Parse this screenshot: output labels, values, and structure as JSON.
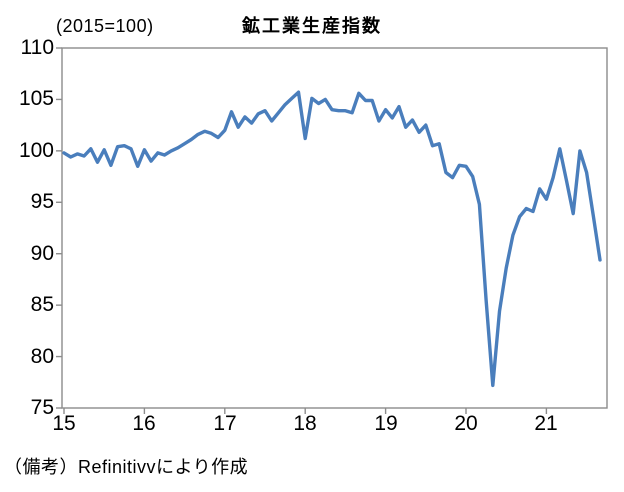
{
  "page": {
    "background": "#ffffff"
  },
  "chart_data": {
    "type": "line",
    "title": "鉱工業生産指数",
    "unit_label": "(2015=100)",
    "source_note": "（備考）Refinitivvにより作成",
    "frequency": "monthly",
    "x_start": "2015-01",
    "x_end": "2021-09",
    "xlabel": "",
    "ylabel": "",
    "ylim": [
      75,
      110
    ],
    "y_ticks": [
      110,
      105,
      100,
      95,
      90,
      85,
      80,
      75
    ],
    "y_tick_labels": [
      "110",
      "105",
      "100",
      "95",
      "90",
      "85",
      "80",
      "75"
    ],
    "x_tick_labels": [
      "15",
      "16",
      "17",
      "18",
      "19",
      "20",
      "21"
    ],
    "grid": false,
    "legend_position": "none",
    "line_color": "#4a7ebc",
    "axis_color": "#8c8c8c",
    "categories": [
      "2015-01",
      "2015-02",
      "2015-03",
      "2015-04",
      "2015-05",
      "2015-06",
      "2015-07",
      "2015-08",
      "2015-09",
      "2015-10",
      "2015-11",
      "2015-12",
      "2016-01",
      "2016-02",
      "2016-03",
      "2016-04",
      "2016-05",
      "2016-06",
      "2016-07",
      "2016-08",
      "2016-09",
      "2016-10",
      "2016-11",
      "2016-12",
      "2017-01",
      "2017-02",
      "2017-03",
      "2017-04",
      "2017-05",
      "2017-06",
      "2017-07",
      "2017-08",
      "2017-09",
      "2017-10",
      "2017-11",
      "2017-12",
      "2018-01",
      "2018-02",
      "2018-03",
      "2018-04",
      "2018-05",
      "2018-06",
      "2018-07",
      "2018-08",
      "2018-09",
      "2018-10",
      "2018-11",
      "2018-12",
      "2019-01",
      "2019-02",
      "2019-03",
      "2019-04",
      "2019-05",
      "2019-06",
      "2019-07",
      "2019-08",
      "2019-09",
      "2019-10",
      "2019-11",
      "2019-12",
      "2020-01",
      "2020-02",
      "2020-03",
      "2020-04",
      "2020-05",
      "2020-06",
      "2020-07",
      "2020-08",
      "2020-09",
      "2020-10",
      "2020-11",
      "2020-12",
      "2021-01",
      "2021-02",
      "2021-03",
      "2021-04",
      "2021-05",
      "2021-06",
      "2021-07",
      "2021-08",
      "2021-09"
    ],
    "values": [
      99.8,
      99.4,
      99.7,
      99.5,
      100.2,
      98.9,
      100.1,
      98.6,
      100.4,
      100.5,
      100.2,
      98.5,
      100.1,
      99.0,
      99.8,
      99.6,
      100.0,
      100.3,
      100.7,
      101.1,
      101.6,
      101.9,
      101.7,
      101.3,
      102.0,
      103.8,
      102.3,
      103.3,
      102.7,
      103.6,
      103.9,
      102.9,
      103.7,
      104.5,
      105.1,
      105.7,
      101.2,
      105.1,
      104.6,
      105.0,
      104.0,
      103.9,
      103.9,
      103.7,
      105.6,
      104.9,
      104.9,
      102.9,
      104.0,
      103.2,
      104.3,
      102.3,
      103.0,
      101.8,
      102.5,
      100.5,
      100.7,
      97.9,
      97.4,
      98.6,
      98.5,
      97.5,
      94.8,
      85.5,
      77.2,
      84.4,
      88.6,
      91.8,
      93.6,
      94.4,
      94.1,
      96.3,
      95.3,
      97.4,
      100.2,
      97.1,
      93.9,
      100.0,
      97.9,
      93.7,
      89.4
    ]
  }
}
